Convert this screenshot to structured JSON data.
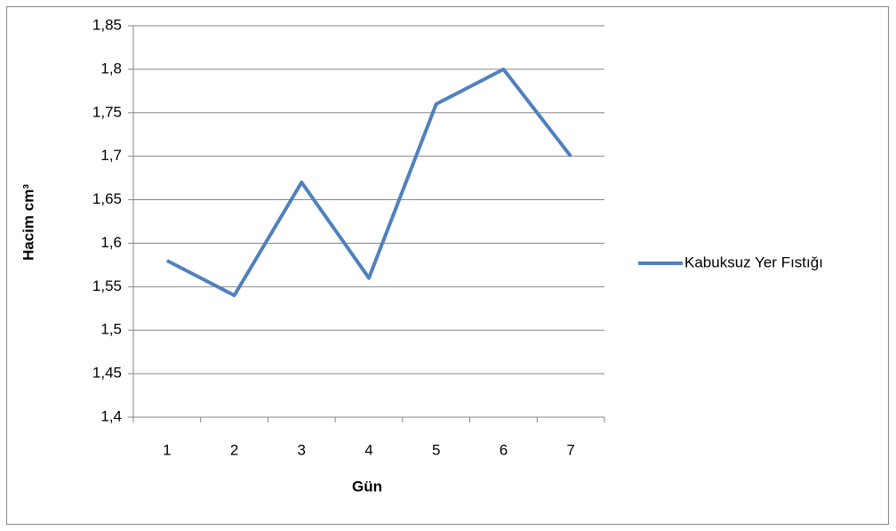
{
  "chart_data": {
    "type": "line",
    "categories": [
      "1",
      "2",
      "3",
      "4",
      "5",
      "6",
      "7"
    ],
    "series": [
      {
        "name": "Kabuksuz Yer Fıstığı",
        "color": "#4f81bd",
        "values": [
          1.58,
          1.54,
          1.67,
          1.56,
          1.76,
          1.8,
          1.7
        ]
      }
    ],
    "ylim": [
      1.4,
      1.85
    ],
    "yticks": [
      {
        "value": 1.4,
        "label": "1,4"
      },
      {
        "value": 1.45,
        "label": "1,45"
      },
      {
        "value": 1.5,
        "label": "1,5"
      },
      {
        "value": 1.55,
        "label": "1,55"
      },
      {
        "value": 1.6,
        "label": "1,6"
      },
      {
        "value": 1.65,
        "label": "1,65"
      },
      {
        "value": 1.7,
        "label": "1,7"
      },
      {
        "value": 1.75,
        "label": "1,75"
      },
      {
        "value": 1.8,
        "label": "1,8"
      },
      {
        "value": 1.85,
        "label": "1,85"
      }
    ],
    "x_label": "Gün",
    "y_label": "Hacim cm³",
    "grid": true,
    "legend": "right"
  }
}
